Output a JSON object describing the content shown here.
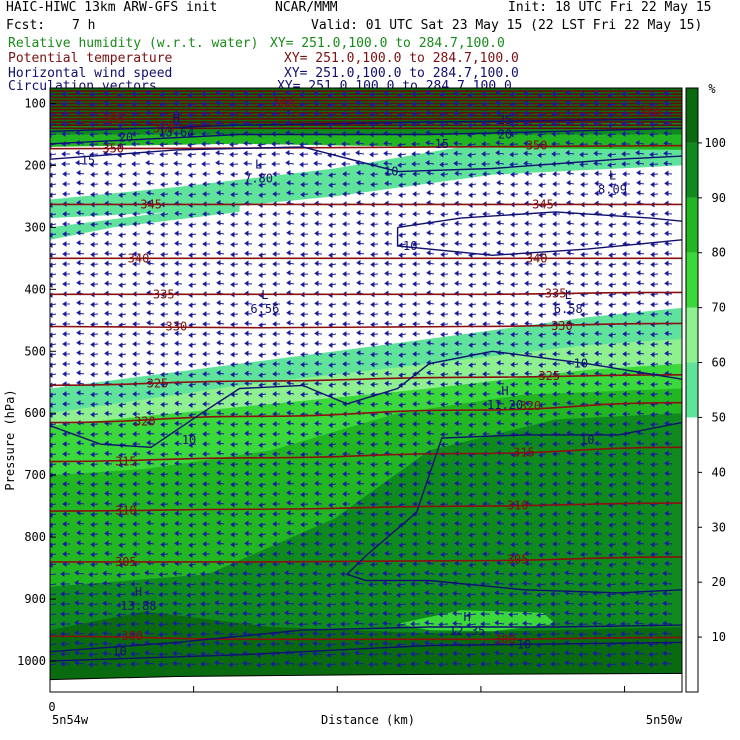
{
  "header": {
    "model": "HAIC-HIWC 13km ARW-GFS init",
    "org": "NCAR/MMM",
    "init": "Init: 18 UTC Fri 22 May 15",
    "fcst_label": "Fcst:",
    "fcst_value": "7 h",
    "valid": "Valid: 01 UTC Sat 23 May 15 (22 LST Fri 22 May 15)",
    "fields": [
      {
        "name": "Relative humidity (w.r.t. water)",
        "xy": "XY= 251.0,100.0 to 284.7,100.0",
        "color": "#1a8a1a"
      },
      {
        "name": "Potential temperature",
        "xy": "XY= 251.0,100.0 to 284.7,100.0",
        "color": "#7a1010"
      },
      {
        "name": "Horizontal wind speed",
        "xy": "XY= 251.0,100.0 to 284.7,100.0",
        "color": "#101070"
      },
      {
        "name": "Circulation vectors",
        "xy": "XY= 251.0,100.0 to 284.7,100.0",
        "color": "#101070"
      }
    ]
  },
  "chart_data": {
    "type": "cross-section",
    "ylabel": "Pressure (hPa)",
    "xlabel": "Distance (km)",
    "y_ticks": [
      100,
      200,
      300,
      400,
      500,
      600,
      700,
      800,
      900,
      1000
    ],
    "ylim": [
      1050,
      75
    ],
    "x_tick_zero": "0",
    "x_left_label": "5n54w",
    "x_right_label": "5n50w",
    "colorbar": {
      "unit": "%",
      "levels": [
        10,
        20,
        30,
        40,
        50,
        60,
        70,
        80,
        90,
        100
      ],
      "colors": [
        {
          "range": [
            50,
            60
          ],
          "color": "#5fe39a"
        },
        {
          "range": [
            60,
            70
          ],
          "color": "#8ef08e"
        },
        {
          "range": [
            70,
            80
          ],
          "color": "#3ad83a"
        },
        {
          "range": [
            80,
            90
          ],
          "color": "#22b622"
        },
        {
          "range": [
            90,
            100
          ],
          "color": "#0f8a1f"
        },
        {
          "range": [
            100,
            110
          ],
          "color": "#0a6a10"
        },
        {
          "range": [
            110,
            999
          ],
          "color": "#f08080"
        }
      ]
    },
    "theta_contours": [
      {
        "value": 300,
        "p": [
          960,
          965,
          965,
          962
        ]
      },
      {
        "value": 305,
        "p": [
          840,
          840,
          838,
          832
        ]
      },
      {
        "value": 310,
        "p": [
          758,
          755,
          750,
          745
        ]
      },
      {
        "value": 315,
        "p": [
          678,
          672,
          665,
          655
        ]
      },
      {
        "value": 320,
        "p": [
          615,
          605,
          595,
          583
        ]
      },
      {
        "value": 325,
        "p": [
          555,
          548,
          542,
          538
        ]
      },
      {
        "value": 330,
        "p": [
          460,
          462,
          460,
          455
        ]
      },
      {
        "value": 335,
        "p": [
          408,
          408,
          408,
          405
        ]
      },
      {
        "value": 340,
        "p": [
          350,
          350,
          350,
          350
        ]
      },
      {
        "value": 345,
        "p": [
          263,
          263,
          263,
          263
        ]
      },
      {
        "value": 350,
        "p": [
          173,
          172,
          170,
          168
        ]
      }
    ],
    "theta_labels": [
      {
        "value": "300",
        "x": 0.13,
        "p": 960
      },
      {
        "value": "300",
        "x": 0.72,
        "p": 965
      },
      {
        "value": "305",
        "x": 0.12,
        "p": 840
      },
      {
        "value": "305",
        "x": 0.74,
        "p": 836
      },
      {
        "value": "310",
        "x": 0.12,
        "p": 757
      },
      {
        "value": "310",
        "x": 0.74,
        "p": 749
      },
      {
        "value": "315",
        "x": 0.12,
        "p": 678
      },
      {
        "value": "315",
        "x": 0.75,
        "p": 663
      },
      {
        "value": "320",
        "x": 0.15,
        "p": 613
      },
      {
        "value": "320",
        "x": 0.76,
        "p": 588
      },
      {
        "value": "325",
        "x": 0.17,
        "p": 552
      },
      {
        "value": "325",
        "x": 0.79,
        "p": 540
      },
      {
        "value": "330",
        "x": 0.2,
        "p": 460
      },
      {
        "value": "330",
        "x": 0.81,
        "p": 459
      },
      {
        "value": "335",
        "x": 0.18,
        "p": 408
      },
      {
        "value": "335",
        "x": 0.8,
        "p": 407
      },
      {
        "value": "340",
        "x": 0.14,
        "p": 350
      },
      {
        "value": "340",
        "x": 0.77,
        "p": 350
      },
      {
        "value": "345",
        "x": 0.16,
        "p": 263
      },
      {
        "value": "345",
        "x": 0.78,
        "p": 263
      },
      {
        "value": "350",
        "x": 0.1,
        "p": 173
      },
      {
        "value": "350",
        "x": 0.77,
        "p": 168
      },
      {
        "value": "360",
        "x": 0.1,
        "p": 125
      },
      {
        "value": "360",
        "x": 0.18,
        "p": 140
      },
      {
        "value": "360",
        "x": 0.37,
        "p": 100
      },
      {
        "value": "360",
        "x": 0.95,
        "p": 115
      }
    ],
    "wind_labels": [
      {
        "value": "10",
        "x": 0.22,
        "p": 643
      },
      {
        "value": "10",
        "x": 0.54,
        "p": 210
      },
      {
        "value": "10",
        "x": 0.57,
        "p": 330
      },
      {
        "value": "10",
        "x": 0.85,
        "p": 643
      },
      {
        "value": "10",
        "x": 0.84,
        "p": 520
      },
      {
        "value": "10",
        "x": 0.75,
        "p": 973
      },
      {
        "value": "10",
        "x": 0.11,
        "p": 985
      },
      {
        "value": "15",
        "x": 0.06,
        "p": 192
      },
      {
        "value": "15",
        "x": 0.62,
        "p": 165
      },
      {
        "value": "20",
        "x": 0.12,
        "p": 155
      },
      {
        "value": "20",
        "x": 0.72,
        "p": 150
      },
      {
        "value": "25",
        "x": 0.72,
        "p": 127
      }
    ],
    "extrema": [
      {
        "type": "L",
        "value": "7.80",
        "x": 0.33,
        "p": 215
      },
      {
        "type": "L",
        "value": "8.09",
        "x": 0.89,
        "p": 232
      },
      {
        "type": "L",
        "value": "6.56",
        "x": 0.34,
        "p": 425
      },
      {
        "type": "L",
        "value": "6.58",
        "x": 0.82,
        "p": 425
      },
      {
        "type": "H",
        "value": "11.20",
        "x": 0.72,
        "p": 580
      },
      {
        "type": "H",
        "value": "13.88",
        "x": 0.14,
        "p": 905
      },
      {
        "type": "H",
        "value": "12.35",
        "x": 0.66,
        "p": 945
      },
      {
        "type": "H",
        "value": "13.64",
        "x": 0.2,
        "p": 140
      }
    ]
  }
}
